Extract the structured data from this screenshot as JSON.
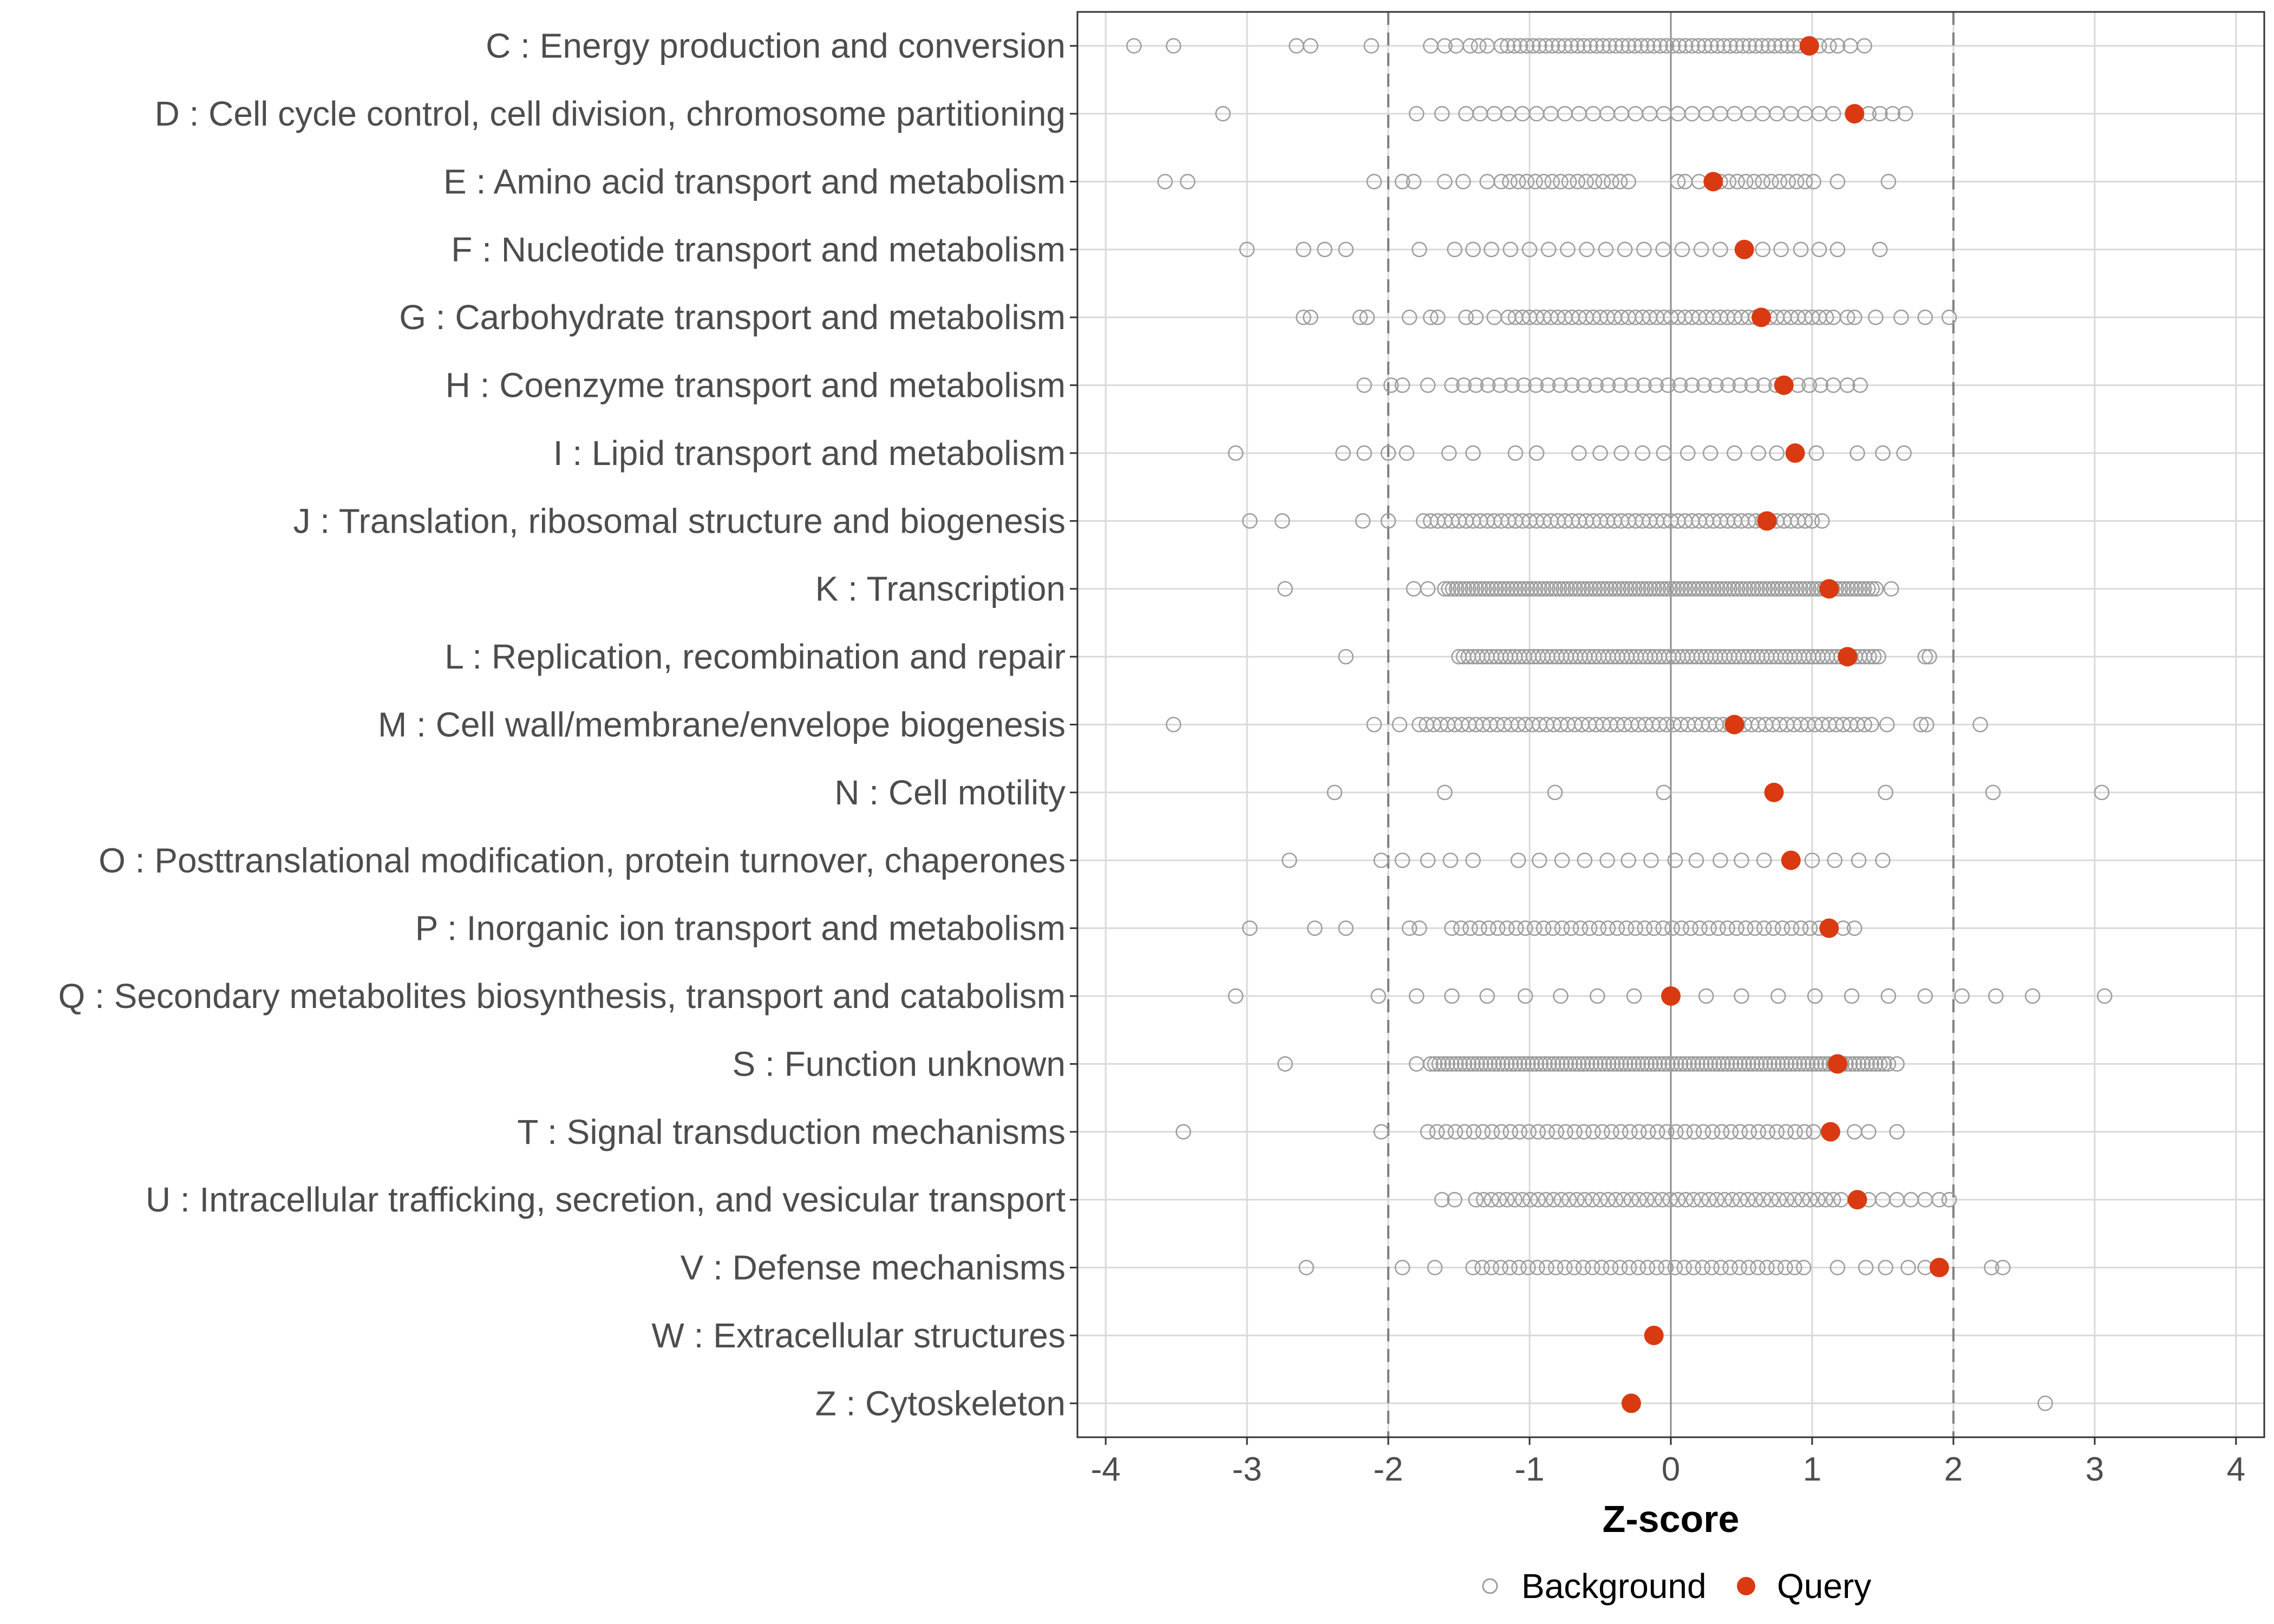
{
  "chart_data": {
    "type": "scatter",
    "title": "",
    "xlabel": "Z-score",
    "ylabel": "",
    "xlim": [
      -4.2,
      4.2
    ],
    "xticks": [
      -4,
      -3,
      -2,
      -1,
      0,
      1,
      2,
      3,
      4
    ],
    "xtick_labels": [
      "-4",
      "-3",
      "-2",
      "-1",
      "0",
      "1",
      "2",
      "3",
      "4"
    ],
    "reference_lines": [
      {
        "x": -2,
        "style": "dashed"
      },
      {
        "x": 0,
        "style": "solid"
      },
      {
        "x": 2,
        "style": "dashed"
      }
    ],
    "legend": {
      "position": "bottom",
      "entries": [
        {
          "label": "Background",
          "marker": "open-circle",
          "color": "#9e9e9e"
        },
        {
          "label": "Query",
          "marker": "filled-circle",
          "color": "#d93a12"
        }
      ]
    },
    "categories": [
      {
        "label": "C : Energy production and conversion",
        "query": 0.98,
        "background": {
          "sparse": [
            -3.8,
            -3.52,
            -2.65,
            -2.55,
            -2.12,
            -1.7,
            -1.6,
            -1.52,
            -1.42,
            -1.36,
            -1.3,
            1.05,
            1.12,
            1.18,
            1.27,
            1.37
          ],
          "range": [
            -1.2,
            0.95
          ],
          "step": 0.045
        }
      },
      {
        "label": "D : Cell cycle control, cell division, chromosome partitioning",
        "query": 1.3,
        "background": {
          "sparse": [
            -3.17,
            -1.8,
            -1.62,
            1.4,
            1.48,
            1.57,
            1.66
          ],
          "range": [
            -1.45,
            1.2
          ],
          "step": 0.1
        }
      },
      {
        "label": "E : Amino acid transport and metabolism",
        "query": 0.3,
        "background": {
          "sparse": [
            -3.58,
            -3.42,
            -2.1,
            -1.9,
            -1.82,
            -1.6,
            -1.47,
            -1.3,
            0.05,
            0.1,
            0.2,
            1.18,
            1.54
          ],
          "range": [
            -1.2,
            -0.3
          ],
          "step": 0.06,
          "range2": [
            0.35,
            1.05
          ],
          "step2": 0.06
        }
      },
      {
        "label": "F : Nucleotide transport and metabolism",
        "query": 0.52,
        "background": {
          "sparse": [
            -3.0,
            -2.6,
            -2.45,
            -2.3,
            -1.78,
            -1.53,
            -1.4,
            0.65,
            0.78,
            0.92,
            1.05,
            1.18,
            1.48
          ],
          "range": [
            -1.27,
            0.4
          ],
          "step": 0.135
        }
      },
      {
        "label": "G : Carbohydrate transport and metabolism",
        "query": 0.64,
        "background": {
          "sparse": [
            -2.6,
            -2.55,
            -2.2,
            -2.15,
            -1.85,
            -1.7,
            -1.65,
            -1.45,
            -1.38,
            -1.25,
            1.25,
            1.3,
            1.45,
            1.63,
            1.8,
            1.97
          ],
          "range": [
            -1.15,
            1.15
          ],
          "step": 0.05
        }
      },
      {
        "label": "H : Coenzyme transport and metabolism",
        "query": 0.8,
        "background": {
          "sparse": [
            -2.17,
            -1.98,
            -1.9,
            -1.72,
            0.9,
            0.98,
            1.06,
            1.15,
            1.25,
            1.34
          ],
          "range": [
            -1.55,
            0.75
          ],
          "step": 0.085
        }
      },
      {
        "label": "I : Lipid transport and metabolism",
        "query": 0.88,
        "background": {
          "sparse": [
            -3.08,
            -2.32,
            -2.17,
            -2.0,
            -1.87,
            -1.57,
            -1.4,
            -1.1,
            -0.95,
            -0.65,
            -0.5,
            -0.35,
            -0.2,
            -0.05,
            0.12,
            0.28,
            0.45,
            0.62,
            0.75,
            1.03,
            1.32,
            1.5,
            1.65
          ]
        }
      },
      {
        "label": "J : Translation, ribosomal structure and biogenesis",
        "query": 0.68,
        "background": {
          "sparse": [
            -2.98,
            -2.75,
            -2.18,
            -2.0,
            1.07
          ],
          "range": [
            -1.75,
            1.0
          ],
          "step": 0.05
        }
      },
      {
        "label": "K : Transcription",
        "query": 1.12,
        "background": {
          "sparse": [
            -2.73,
            -1.82,
            -1.72,
            1.56
          ],
          "range": [
            -1.6,
            1.47
          ],
          "step": 0.028
        }
      },
      {
        "label": "L : Replication, recombination and repair",
        "query": 1.25,
        "background": {
          "sparse": [
            -2.3,
            1.8,
            1.83
          ],
          "range": [
            -1.5,
            1.5
          ],
          "step": 0.033
        }
      },
      {
        "label": "M : Cell wall/membrane/envelope biogenesis",
        "query": 0.45,
        "background": {
          "sparse": [
            -3.52,
            -2.1,
            -1.92,
            1.53,
            1.77,
            1.81,
            2.19
          ],
          "range": [
            -1.78,
            1.45
          ],
          "step": 0.05
        }
      },
      {
        "label": "N : Cell motility",
        "query": 0.73,
        "background": {
          "sparse": [
            -2.38,
            -1.6,
            -0.82,
            -0.05,
            1.52,
            2.28,
            3.05
          ]
        }
      },
      {
        "label": "O : Posttranslational modification, protein turnover, chaperones",
        "query": 0.85,
        "background": {
          "sparse": [
            -2.7,
            -2.05,
            -1.9,
            -1.72,
            -1.56,
            -1.4,
            -1.08,
            -0.93,
            -0.77,
            -0.61,
            -0.45,
            -0.3,
            -0.14,
            0.03,
            0.18,
            0.35,
            0.5,
            0.66,
            1.0,
            1.16,
            1.33,
            1.5
          ]
        }
      },
      {
        "label": "P : Inorganic ion transport and metabolism",
        "query": 1.12,
        "background": {
          "sparse": [
            -2.98,
            -2.52,
            -2.3,
            -1.85,
            -1.78,
            1.22,
            1.3
          ],
          "range": [
            -1.55,
            1.05
          ],
          "step": 0.065
        }
      },
      {
        "label": "Q : Secondary metabolites biosynthesis, transport and catabolism",
        "query": 0.0,
        "background": {
          "sparse": [
            -3.08,
            -2.07,
            -1.8,
            -1.55,
            -1.3,
            -1.03,
            -0.78,
            -0.52,
            -0.26,
            0.25,
            0.5,
            0.76,
            1.02,
            1.28,
            1.54,
            1.8,
            2.06,
            2.3,
            2.56,
            3.07
          ]
        }
      },
      {
        "label": "S : Function unknown",
        "query": 1.18,
        "background": {
          "sparse": [
            -2.73,
            -1.8,
            1.6
          ],
          "range": [
            -1.7,
            1.56
          ],
          "step": 0.03
        }
      },
      {
        "label": "T : Signal transduction mechanisms",
        "query": 1.13,
        "background": {
          "sparse": [
            -3.45,
            -2.05,
            1.3,
            1.4,
            1.6
          ],
          "range": [
            -1.72,
            1.05
          ],
          "step": 0.065
        }
      },
      {
        "label": "U : Intracellular trafficking, secretion, and vesicular transport",
        "query": 1.32,
        "background": {
          "sparse": [
            -1.62,
            -1.53,
            1.4,
            1.5,
            1.6,
            1.7,
            1.8,
            1.9,
            1.97
          ],
          "range": [
            -1.38,
            1.25
          ],
          "step": 0.055
        }
      },
      {
        "label": "V : Defense mechanisms",
        "query": 1.9,
        "background": {
          "sparse": [
            -2.58,
            -1.9,
            -1.67,
            1.18,
            1.38,
            1.52,
            1.68,
            1.8,
            2.27,
            2.35
          ],
          "range": [
            -1.4,
            1.0
          ],
          "step": 0.065
        }
      },
      {
        "label": "W : Extracellular structures",
        "query": -0.12,
        "background": {
          "sparse": []
        }
      },
      {
        "label": "Z : Cytoskeleton",
        "query": -0.28,
        "background": {
          "sparse": [
            2.65
          ]
        }
      }
    ]
  }
}
